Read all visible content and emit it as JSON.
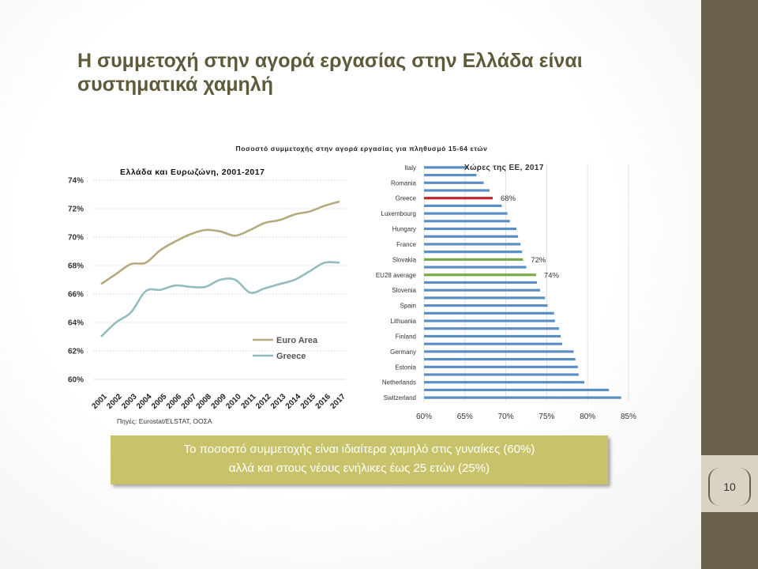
{
  "slide": {
    "title": "Η συμμετοχή στην αγορά εργασίας στην Ελλάδα είναι συστηματικά χαμηλή",
    "page_number": "10",
    "figure_title": "Ποσοστό συμμετοχής στην αγορά εργασίας για πληθυσμό 15-64 ετών",
    "footnote": "Πηγές: Eurostat/ELSTAT, ΟΟΣΑ",
    "callout_line1": "Το ποσοστό συμμετοχής είναι ιδιαίτερα χαμηλό στις γυναίκες (60%)",
    "callout_line2": "αλλά και στους νέους ενήλικες έως 25 ετών (25%)",
    "colors": {
      "side_bar": "#6b604a",
      "title": "#5f5a3a",
      "callout": "#c8c36a"
    }
  },
  "chart_data": [
    {
      "type": "line",
      "title": "Ελλάδα και Ευρωζώνη, 2001-2017",
      "x": [
        "2001",
        "2002",
        "2003",
        "2004",
        "2005",
        "2006",
        "2007",
        "2008",
        "2009",
        "2010",
        "2011",
        "2012",
        "2013",
        "2014",
        "2015",
        "2016",
        "2017"
      ],
      "ylim": [
        60,
        74
      ],
      "yticks": [
        "60%",
        "62%",
        "64%",
        "66%",
        "68%",
        "70%",
        "72%",
        "74%"
      ],
      "grid": true,
      "legend_position": "bottom-right",
      "series": [
        {
          "name": "Euro Area",
          "color": "#b5a97d",
          "values": [
            66.7,
            67.4,
            68.1,
            68.2,
            69.1,
            69.7,
            70.2,
            70.5,
            70.4,
            70.1,
            70.5,
            71.0,
            71.2,
            71.6,
            71.8,
            72.2,
            72.5
          ]
        },
        {
          "name": "Greece",
          "color": "#93bcbf",
          "values": [
            63.0,
            64.0,
            64.7,
            66.2,
            66.3,
            66.6,
            66.5,
            66.5,
            67.0,
            67.0,
            66.1,
            66.4,
            66.7,
            67.0,
            67.6,
            68.2,
            68.2
          ]
        }
      ]
    },
    {
      "type": "bar",
      "orientation": "horizontal",
      "title": "Χώρες της ΕΕ, 2017",
      "xlim": [
        60,
        85
      ],
      "xticks": [
        "60%",
        "65%",
        "70%",
        "75%",
        "80%",
        "85%"
      ],
      "grid": true,
      "categories": [
        "Italy",
        "",
        "Romania",
        "",
        "Greece",
        "",
        "Luxembourg",
        "",
        "Hungary",
        "",
        "France",
        "",
        "Slovakia",
        "",
        "EU28 average",
        "",
        "Slovenia",
        "",
        "Spain",
        "",
        "Lithuania",
        "",
        "Finland",
        "",
        "Germany",
        "",
        "Estonia",
        "",
        "Netherlands",
        "",
        "Switzerland"
      ],
      "values": [
        65.4,
        66.4,
        67.3,
        68.0,
        68.4,
        69.5,
        70.2,
        70.5,
        71.3,
        71.5,
        71.8,
        72.0,
        72.1,
        72.5,
        73.7,
        73.8,
        74.2,
        74.8,
        75.1,
        75.9,
        76.0,
        76.5,
        76.7,
        76.9,
        78.3,
        78.5,
        78.8,
        78.9,
        79.6,
        82.6,
        84.1
      ],
      "bar_color": "#5b8ec4",
      "highlights": [
        {
          "index": 4,
          "color": "#c0282c",
          "label": "68%"
        },
        {
          "index": 12,
          "color": "#78a84a",
          "label": "72%"
        },
        {
          "index": 14,
          "color": "#78a84a",
          "label": "74%"
        }
      ]
    }
  ]
}
